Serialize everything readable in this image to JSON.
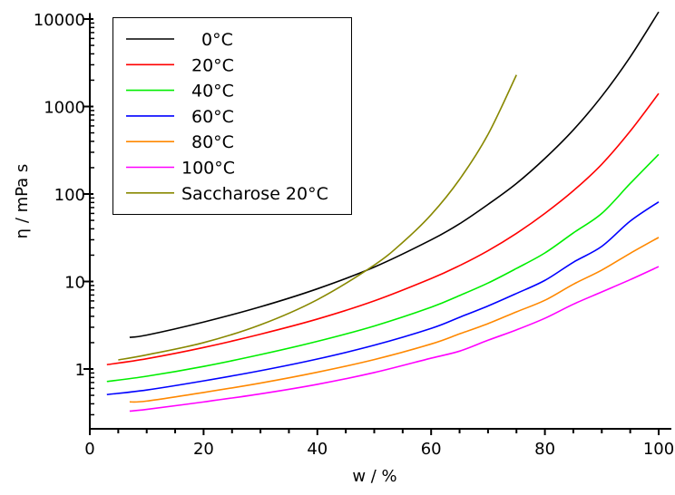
{
  "chart_data": {
    "type": "line",
    "title": "",
    "xlabel": "w / %",
    "ylabel": "η / mPa s",
    "xlim": [
      0,
      100
    ],
    "ylim": [
      0.207,
      11700
    ],
    "yscale": "log",
    "x_ticks": [
      0,
      20,
      40,
      60,
      80,
      100
    ],
    "x_tick_labels": [
      "0",
      "20",
      "40",
      "60",
      "80",
      "100"
    ],
    "y_ticks": [
      1,
      10,
      100,
      1000,
      10000
    ],
    "y_tick_labels": [
      "1",
      "10",
      "100",
      "1000",
      "10000"
    ],
    "grid": false,
    "legend_position": "top-left",
    "series": [
      {
        "name": "0°C",
        "color": "#000000",
        "x": [
          7,
          10,
          20,
          30,
          40,
          50,
          60,
          65,
          70,
          75,
          80,
          85,
          90,
          95,
          100
        ],
        "y": [
          2.3,
          2.44,
          3.44,
          5.14,
          8.25,
          14.6,
          29.9,
          45.7,
          76,
          132,
          255,
          540,
          1310,
          3690,
          12070
        ]
      },
      {
        "name": "20°C",
        "color": "#ff0000",
        "x": [
          3,
          10,
          20,
          30,
          40,
          50,
          60,
          65,
          70,
          75,
          80,
          85,
          90,
          95,
          100
        ],
        "y": [
          1.12,
          1.31,
          1.76,
          2.5,
          3.72,
          6.0,
          10.8,
          15.2,
          22.5,
          35.5,
          60.1,
          109,
          219,
          523,
          1410
        ]
      },
      {
        "name": "40°C",
        "color": "#00ee00",
        "x": [
          3,
          10,
          20,
          30,
          40,
          50,
          60,
          65,
          70,
          75,
          80,
          85,
          90,
          95,
          100
        ],
        "y": [
          0.72,
          0.826,
          1.07,
          1.46,
          2.07,
          3.1,
          5.08,
          6.91,
          9.6,
          14.1,
          21.2,
          35.9,
          60,
          132,
          284
        ]
      },
      {
        "name": "60°C",
        "color": "#0000ff",
        "x": [
          3,
          10,
          20,
          30,
          40,
          50,
          60,
          65,
          70,
          75,
          80,
          85,
          90,
          95,
          100
        ],
        "y": [
          0.51,
          0.575,
          0.731,
          0.956,
          1.3,
          1.87,
          2.91,
          3.9,
          5.25,
          7.3,
          10.3,
          16.6,
          25.2,
          49,
          81.3
        ]
      },
      {
        "name": "80°C",
        "color": "#ff8800",
        "x": [
          7,
          10,
          20,
          30,
          40,
          50,
          60,
          65,
          70,
          75,
          80,
          85,
          90,
          95,
          100
        ],
        "y": [
          0.42,
          0.43,
          0.539,
          0.69,
          0.918,
          1.28,
          1.93,
          2.52,
          3.3,
          4.5,
          6.1,
          9.3,
          13.5,
          21,
          31.9
        ]
      },
      {
        "name": "100°C",
        "color": "#ff00ff",
        "x": [
          7,
          10,
          20,
          30,
          40,
          50,
          60,
          65,
          70,
          75,
          80,
          85,
          90,
          95,
          100
        ],
        "y": [
          0.33,
          0.345,
          0.42,
          0.52,
          0.668,
          0.91,
          1.33,
          1.6,
          2.13,
          2.8,
          3.8,
          5.5,
          7.6,
          10.5,
          14.8
        ]
      },
      {
        "name": "Saccharose 20°C",
        "color": "#888800",
        "x": [
          5,
          10,
          20,
          30,
          40,
          50,
          55,
          60,
          65,
          70,
          75
        ],
        "y": [
          1.27,
          1.45,
          2.0,
          3.2,
          6.2,
          15.4,
          28,
          58,
          147,
          480,
          2300
        ]
      }
    ]
  }
}
